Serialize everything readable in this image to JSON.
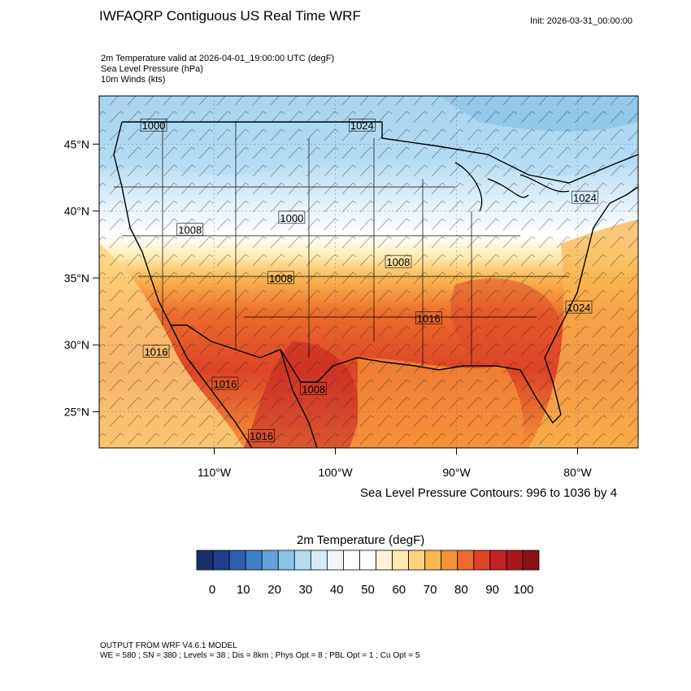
{
  "header": {
    "title": "IWFAQRP Contiguous US Real Time WRF",
    "init": "Init: 2026-03-31_00:00:00",
    "fields": [
      "2m Temperature valid at 2026-04-01_19:00:00 UTC   (degF)",
      "Sea Level Pressure   (hPa)",
      "10m Winds   (kts)"
    ]
  },
  "map": {
    "lat_labels": [
      "45°N",
      "40°N",
      "35°N",
      "30°N",
      "25°N"
    ],
    "lon_labels": [
      "110°W",
      "100°W",
      "90°W",
      "80°W"
    ],
    "lat_values": [
      45,
      40,
      35,
      30,
      25
    ],
    "lon_values": [
      -110,
      -100,
      -90,
      -80
    ],
    "extent": {
      "lon_min": -119.5,
      "lon_max": -75.0,
      "lat_min": 22.3,
      "lat_max": 48.6
    },
    "pressure_labels": [
      {
        "text": "1000",
        "lon": -115.0,
        "lat": 46.4
      },
      {
        "text": "1024",
        "lon": -97.8,
        "lat": 46.4
      },
      {
        "text": "1024",
        "lon": -79.4,
        "lat": 41.0
      },
      {
        "text": "1000",
        "lon": -103.6,
        "lat": 39.5
      },
      {
        "text": "1008",
        "lon": -112.0,
        "lat": 38.6
      },
      {
        "text": "1008",
        "lon": -104.5,
        "lat": 35.0
      },
      {
        "text": "1008",
        "lon": -94.8,
        "lat": 36.2
      },
      {
        "text": "1016",
        "lon": -92.3,
        "lat": 32.0
      },
      {
        "text": "1024",
        "lon": -79.9,
        "lat": 32.8
      },
      {
        "text": "1016",
        "lon": -114.8,
        "lat": 29.5
      },
      {
        "text": "1016",
        "lon": -109.1,
        "lat": 27.1
      },
      {
        "text": "1008",
        "lon": -101.8,
        "lat": 26.7
      },
      {
        "text": "1016",
        "lon": -106.1,
        "lat": 23.2
      }
    ],
    "contour_info": "Sea Level Pressure Contours: 996 to 1036 by 4"
  },
  "colorbar": {
    "title": "2m Temperature  (degF)",
    "labels": [
      "0",
      "10",
      "20",
      "30",
      "40",
      "50",
      "60",
      "70",
      "80",
      "90",
      "100"
    ],
    "colors": [
      "#1b2e6e",
      "#223f8f",
      "#2d5fae",
      "#3f7fc8",
      "#64a3d8",
      "#8cc4e8",
      "#b3dcf3",
      "#d6ebf8",
      "#f0f7fc",
      "#ffffff",
      "#ffffff",
      "#fff5d6",
      "#fde9ad",
      "#fcd27f",
      "#f9b54f",
      "#f5923a",
      "#ec6b2c",
      "#dc4426",
      "#c32422",
      "#a7181d",
      "#8a1118"
    ]
  },
  "footer": {
    "model": "OUTPUT FROM WRF V4.6.1 MODEL",
    "details": "WE = 580 ; SN = 380 ; Levels = 38 ; Dis = 8km ; Phys Opt = 8 ; PBL Opt = 1 ; Cu Opt = 5"
  }
}
